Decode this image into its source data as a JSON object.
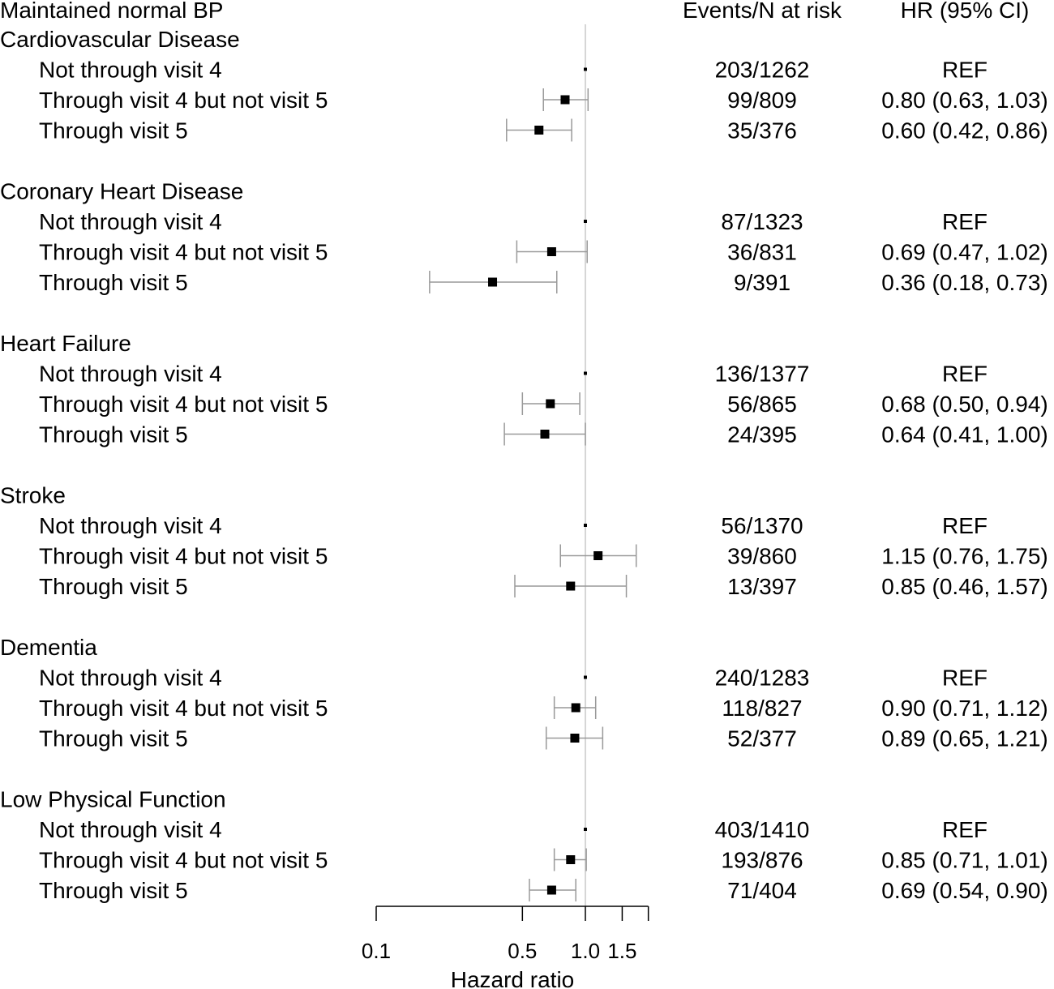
{
  "chart_data": {
    "type": "forest",
    "headers": {
      "label": "Maintained normal BP",
      "events": "Events/N at risk",
      "hr": "HR (95% CI)"
    },
    "xlabel": "Hazard ratio",
    "x_scale": "log",
    "xlim": [
      0.1,
      2.0
    ],
    "xticks": [
      {
        "value": 0.1,
        "label": "0.1"
      },
      {
        "value": 0.5,
        "label": "0.5"
      },
      {
        "value": 1.0,
        "label": "1.0"
      },
      {
        "value": 1.5,
        "label": "1.5"
      },
      {
        "value": 2.0,
        "label": ""
      }
    ],
    "reference_line": 1.0,
    "groups": [
      {
        "name": "Cardiovascular Disease",
        "rows": [
          {
            "label": "Not through visit 4",
            "events": "203/1262",
            "hr_text": "REF",
            "hr": 1.0,
            "lo": null,
            "hi": null
          },
          {
            "label": "Through visit 4 but not visit 5",
            "events": "99/809",
            "hr_text": "0.80 (0.63, 1.03)",
            "hr": 0.8,
            "lo": 0.63,
            "hi": 1.03
          },
          {
            "label": "Through visit 5",
            "events": "35/376",
            "hr_text": "0.60 (0.42, 0.86)",
            "hr": 0.6,
            "lo": 0.42,
            "hi": 0.86
          }
        ]
      },
      {
        "name": "Coronary Heart Disease",
        "rows": [
          {
            "label": "Not through visit 4",
            "events": "87/1323",
            "hr_text": "REF",
            "hr": 1.0,
            "lo": null,
            "hi": null
          },
          {
            "label": "Through visit 4 but not visit 5",
            "events": "36/831",
            "hr_text": "0.69 (0.47, 1.02)",
            "hr": 0.69,
            "lo": 0.47,
            "hi": 1.02
          },
          {
            "label": "Through visit 5",
            "events": "9/391",
            "hr_text": "0.36 (0.18, 0.73)",
            "hr": 0.36,
            "lo": 0.18,
            "hi": 0.73
          }
        ]
      },
      {
        "name": "Heart Failure",
        "rows": [
          {
            "label": "Not through visit 4",
            "events": "136/1377",
            "hr_text": "REF",
            "hr": 1.0,
            "lo": null,
            "hi": null
          },
          {
            "label": "Through visit 4 but not visit 5",
            "events": "56/865",
            "hr_text": "0.68 (0.50, 0.94)",
            "hr": 0.68,
            "lo": 0.5,
            "hi": 0.94
          },
          {
            "label": "Through visit 5",
            "events": "24/395",
            "hr_text": "0.64 (0.41, 1.00)",
            "hr": 0.64,
            "lo": 0.41,
            "hi": 1.0
          }
        ]
      },
      {
        "name": "Stroke",
        "rows": [
          {
            "label": "Not through visit 4",
            "events": "56/1370",
            "hr_text": "REF",
            "hr": 1.0,
            "lo": null,
            "hi": null
          },
          {
            "label": "Through visit 4 but not visit 5",
            "events": "39/860",
            "hr_text": "1.15 (0.76, 1.75)",
            "hr": 1.15,
            "lo": 0.76,
            "hi": 1.75
          },
          {
            "label": "Through visit 5",
            "events": "13/397",
            "hr_text": "0.85 (0.46, 1.57)",
            "hr": 0.85,
            "lo": 0.46,
            "hi": 1.57
          }
        ]
      },
      {
        "name": "Dementia",
        "rows": [
          {
            "label": "Not through visit 4",
            "events": "240/1283",
            "hr_text": "REF",
            "hr": 1.0,
            "lo": null,
            "hi": null
          },
          {
            "label": "Through visit 4 but not visit 5",
            "events": "118/827",
            "hr_text": "0.90 (0.71, 1.12)",
            "hr": 0.9,
            "lo": 0.71,
            "hi": 1.12
          },
          {
            "label": "Through visit 5",
            "events": "52/377",
            "hr_text": "0.89 (0.65, 1.21)",
            "hr": 0.89,
            "lo": 0.65,
            "hi": 1.21
          }
        ]
      },
      {
        "name": "Low Physical Function",
        "rows": [
          {
            "label": "Not through visit 4",
            "events": "403/1410",
            "hr_text": "REF",
            "hr": 1.0,
            "lo": null,
            "hi": null
          },
          {
            "label": "Through visit 4 but not visit 5",
            "events": "193/876",
            "hr_text": "0.85 (0.71, 1.01)",
            "hr": 0.85,
            "lo": 0.71,
            "hi": 1.01
          },
          {
            "label": "Through visit 5",
            "events": "71/404",
            "hr_text": "0.69 (0.54, 0.90)",
            "hr": 0.69,
            "lo": 0.54,
            "hi": 0.9
          }
        ]
      }
    ]
  }
}
